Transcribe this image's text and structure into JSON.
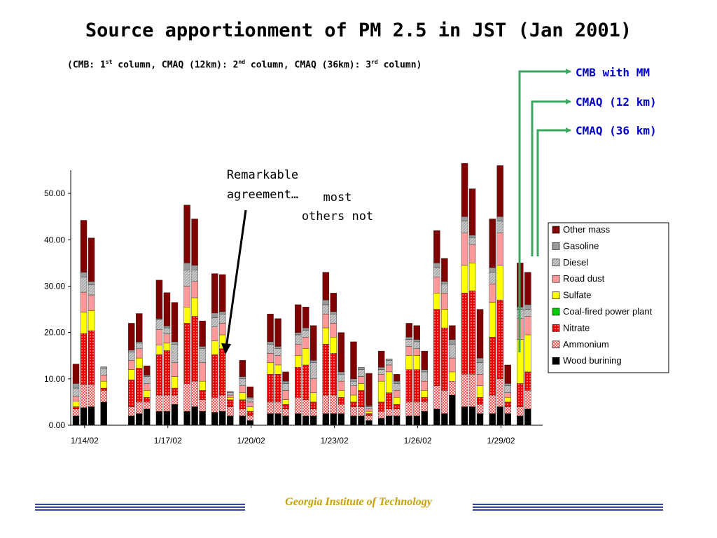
{
  "slide": {
    "title": "Source apportionment of PM 2.5 in JST (Jan 2001)",
    "subtitle": {
      "p1": "(CMB: 1",
      "s1": "st",
      "p2": " column, CMAQ (12km): 2",
      "s2": "nd",
      "p3": " column, CMAQ (36km): 3",
      "s3": "rd",
      "p4": " column)"
    },
    "model_labels": [
      "CMB with MM",
      "CMAQ (12 km)",
      "CMAQ (36 km)"
    ],
    "annotation_agreement": [
      "Remarkable",
      "agreement…"
    ],
    "annotation_others": [
      "most",
      "others not"
    ],
    "footer": "Georgia Institute of Technology"
  },
  "colors": {
    "arrow": "#3aa860",
    "label": "#0000cc",
    "footer_text": "#c8a000",
    "footer_line": "#3344aa"
  },
  "chart_data": {
    "type": "bar",
    "stacked": true,
    "ylim": [
      0,
      55
    ],
    "yticks": [
      "0.00",
      "10.00",
      "20.00",
      "30.00",
      "40.00",
      "50.00"
    ],
    "xticks": [
      "1/14/02",
      "1/17/02",
      "1/20/02",
      "1/23/02",
      "1/26/02",
      "1/29/02"
    ],
    "legend_position": "right",
    "series": [
      {
        "name": "Wood burining",
        "color": "#000000",
        "pattern": "solid"
      },
      {
        "name": "Ammonium",
        "color": "#ff6666",
        "pattern": "checker"
      },
      {
        "name": "Nitrate",
        "color": "#ee0000",
        "pattern": "dots"
      },
      {
        "name": "Coal-fired power plant",
        "color": "#00cc00",
        "pattern": "solid"
      },
      {
        "name": "Sulfate",
        "color": "#ffff00",
        "pattern": "solid"
      },
      {
        "name": "Road dust",
        "color": "#ff9999",
        "pattern": "solid"
      },
      {
        "name": "Diesel",
        "color": "#999999",
        "pattern": "hatch"
      },
      {
        "name": "Gasoline",
        "color": "#999999",
        "pattern": "solid"
      },
      {
        "name": "Other mass",
        "color": "#800000",
        "pattern": "solid"
      }
    ],
    "days": [
      {
        "date": "1/14/02",
        "bars": [
          [
            2,
            1.5,
            0.5,
            0,
            1.2,
            1,
            1.8,
            1,
            4.2
          ],
          [
            3.8,
            5,
            11,
            0,
            4.6,
            4.3,
            3.3,
            1,
            11.2
          ],
          [
            4,
            4.8,
            11.6,
            0,
            4.3,
            3.4,
            2.2,
            0.7,
            9.4
          ]
        ]
      },
      {
        "date": "1/15/02",
        "bars": [
          [
            5,
            2.5,
            0.5,
            0,
            1.5,
            1.3,
            1.5,
            0.3,
            0
          ]
        ]
      },
      {
        "date": "1/16/02",
        "bars": [
          [
            2,
            2,
            5.8,
            0,
            2.2,
            2,
            1.8,
            0.4,
            5.8
          ],
          [
            2.5,
            2.5,
            7.3,
            0,
            2.2,
            2,
            1.2,
            0.3,
            6.1
          ],
          [
            3.5,
            1.5,
            1,
            0,
            1.5,
            1.5,
            1.5,
            0.3,
            2
          ]
        ]
      },
      {
        "date": "1/17/02",
        "bars": [
          [
            3,
            3.5,
            8.7,
            0,
            2.1,
            3.3,
            2.1,
            0.3,
            8.3
          ],
          [
            3,
            3.5,
            9.6,
            0,
            1.6,
            2,
            1.3,
            0.4,
            7.2
          ],
          [
            4.5,
            2,
            1.5,
            0,
            2.5,
            3,
            4,
            0.5,
            8.5
          ]
        ]
      },
      {
        "date": "1/18/02",
        "bars": [
          [
            3,
            6,
            13,
            0,
            3.5,
            4.5,
            3.5,
            1.5,
            12.5
          ],
          [
            4,
            5.5,
            14,
            0,
            4,
            3.5,
            2.5,
            1,
            10
          ],
          [
            3,
            2.5,
            2,
            0,
            2,
            4,
            3,
            0.5,
            5.5
          ]
        ]
      },
      {
        "date": "1/19/02",
        "bars": [
          [
            2.8,
            3.2,
            9.2,
            0,
            3,
            3,
            2,
            1,
            8.5
          ],
          [
            3,
            3.5,
            10,
            0,
            3,
            2.5,
            2,
            0.5,
            8
          ],
          [
            2,
            2,
            1.5,
            0,
            0.5,
            0.5,
            0.5,
            0.3,
            0
          ]
        ]
      },
      {
        "date": "1/20/02",
        "bars": [
          [
            2,
            1.5,
            2,
            0,
            1.5,
            1.5,
            1.5,
            0.5,
            3.5
          ],
          [
            1,
            1,
            1,
            0,
            1,
            1,
            0.7,
            0.3,
            2.3
          ],
          [
            0,
            0,
            0,
            0,
            0,
            0,
            0,
            0,
            0
          ]
        ]
      },
      {
        "date": "1/21/02",
        "bars": [
          [
            2.5,
            2.5,
            6,
            0,
            2.5,
            2,
            2,
            0.5,
            6
          ],
          [
            2.5,
            2.5,
            6,
            0,
            2,
            2,
            1.5,
            0.5,
            6
          ],
          [
            2,
            1.5,
            1,
            0,
            1,
            2,
            1.5,
            0.5,
            2
          ]
        ]
      },
      {
        "date": "1/22/02",
        "bars": [
          [
            2.5,
            3.5,
            6.5,
            0,
            2.5,
            2.5,
            2,
            0.5,
            6
          ],
          [
            2,
            3.5,
            7.5,
            0,
            3.5,
            2.5,
            1.5,
            0.5,
            4.5
          ],
          [
            2,
            1.5,
            1.5,
            0,
            2,
            3,
            3.5,
            0.5,
            7.5
          ]
        ]
      },
      {
        "date": "1/23/02",
        "bars": [
          [
            2.5,
            4,
            11,
            0,
            3.5,
            3,
            2,
            1,
            6
          ],
          [
            2.5,
            4,
            9,
            0,
            3.5,
            3,
            2,
            0.5,
            4
          ],
          [
            2.5,
            2,
            1.5,
            0,
            1.5,
            2,
            1.5,
            0.5,
            8.5
          ]
        ]
      },
      {
        "date": "1/24/02",
        "bars": [
          [
            2,
            2,
            1,
            0,
            1.5,
            2,
            1,
            0.5,
            8
          ],
          [
            2,
            2,
            3.5,
            0,
            1.5,
            1.5,
            1.5,
            0.5,
            0
          ],
          [
            1,
            1,
            0.5,
            0,
            0.5,
            0.5,
            0.5,
            0.2,
            7
          ]
        ]
      },
      {
        "date": "1/25/02",
        "bars": [
          [
            1.5,
            1.5,
            2,
            0,
            4.5,
            1.5,
            1,
            0.5,
            3.5
          ],
          [
            2,
            1.5,
            3.5,
            0,
            4.5,
            1.5,
            1,
            0.3,
            0
          ],
          [
            2,
            1.5,
            1,
            0,
            1.5,
            1.5,
            1.5,
            0.5,
            1.5
          ]
        ]
      },
      {
        "date": "1/26/02",
        "bars": [
          [
            2,
            3,
            7,
            0,
            3,
            2,
            1.5,
            0.5,
            3
          ],
          [
            2,
            3,
            7,
            0,
            3,
            1.5,
            1.5,
            0.5,
            3
          ],
          [
            3,
            2,
            1,
            0,
            1.5,
            2,
            2,
            0.5,
            4
          ]
        ]
      },
      {
        "date": "1/27/02",
        "bars": [
          [
            3.5,
            5,
            16.5,
            0,
            3.5,
            3.5,
            2,
            1,
            7
          ],
          [
            2.5,
            5,
            13.5,
            0,
            4,
            3.5,
            2,
            0.5,
            5
          ],
          [
            6.5,
            3,
            0,
            0,
            2,
            3,
            3,
            1,
            3
          ]
        ]
      },
      {
        "date": "1/28/02",
        "bars": [
          [
            4,
            7,
            17.5,
            0,
            6,
            7,
            2.5,
            1,
            11.5
          ],
          [
            4,
            7,
            18,
            0,
            6,
            4,
            1.5,
            0.5,
            10
          ],
          [
            2.5,
            2,
            1.5,
            0,
            2.5,
            2.5,
            2.5,
            1,
            10.5
          ]
        ]
      },
      {
        "date": "1/29/02",
        "bars": [
          [
            2.5,
            4,
            12.5,
            0,
            7.5,
            4,
            2.5,
            1,
            10.5
          ],
          [
            4,
            6,
            17,
            0,
            7.5,
            7,
            2.5,
            1,
            11
          ],
          [
            2.5,
            1.5,
            1,
            0,
            1,
            1,
            1.5,
            0.5,
            4
          ]
        ]
      },
      {
        "date": "1/30/02",
        "bars": [
          [
            2,
            2,
            5,
            0,
            9.5,
            4.5,
            2,
            0.5,
            9.5
          ],
          [
            3.5,
            4,
            4,
            0,
            8,
            4,
            1.5,
            1,
            7
          ]
        ]
      }
    ]
  }
}
